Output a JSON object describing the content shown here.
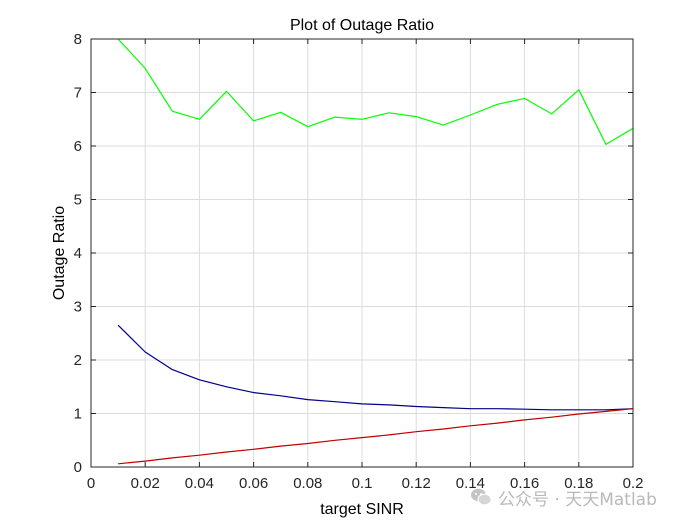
{
  "chart_data": {
    "type": "line",
    "title": "Plot of Outage Ratio",
    "xlabel": "target SINR",
    "ylabel": "Outage Ratio",
    "xlim": [
      0,
      0.2
    ],
    "ylim": [
      0,
      8
    ],
    "xticks": [
      0,
      0.02,
      0.04,
      0.06,
      0.08,
      0.1,
      0.12,
      0.14,
      0.16,
      0.18,
      0.2
    ],
    "xtick_labels": [
      "0",
      "0.02",
      "0.04",
      "0.06",
      "0.08",
      "0.1",
      "0.12",
      "0.14",
      "0.16",
      "0.18",
      "0.2"
    ],
    "yticks": [
      0,
      1,
      2,
      3,
      4,
      5,
      6,
      7,
      8
    ],
    "ytick_labels": [
      "0",
      "1",
      "2",
      "3",
      "4",
      "5",
      "6",
      "7",
      "8"
    ],
    "grid": true,
    "x": [
      0.01,
      0.02,
      0.03,
      0.04,
      0.05,
      0.06,
      0.07,
      0.08,
      0.09,
      0.1,
      0.11,
      0.12,
      0.13,
      0.14,
      0.15,
      0.16,
      0.17,
      0.18,
      0.19,
      0.2
    ],
    "series": [
      {
        "color": "#00ff00",
        "values": [
          8.0,
          7.45,
          6.65,
          6.5,
          7.02,
          6.47,
          6.63,
          6.36,
          6.54,
          6.5,
          6.62,
          6.55,
          6.39,
          6.58,
          6.78,
          6.89,
          6.6,
          7.05,
          6.03,
          6.33
        ]
      },
      {
        "color": "#00008b",
        "values": [
          2.65,
          2.15,
          1.82,
          1.63,
          1.5,
          1.39,
          1.33,
          1.26,
          1.22,
          1.18,
          1.16,
          1.13,
          1.11,
          1.09,
          1.09,
          1.08,
          1.07,
          1.07,
          1.07,
          1.09
        ]
      },
      {
        "color": "#c00000",
        "values": [
          0.06,
          0.11,
          0.17,
          0.22,
          0.28,
          0.33,
          0.39,
          0.44,
          0.5,
          0.55,
          0.6,
          0.66,
          0.71,
          0.77,
          0.82,
          0.88,
          0.93,
          0.99,
          1.04,
          1.09
        ]
      }
    ]
  },
  "watermark": {
    "icon": "wechat-icon",
    "text": "公众号 · 天天Matlab"
  }
}
